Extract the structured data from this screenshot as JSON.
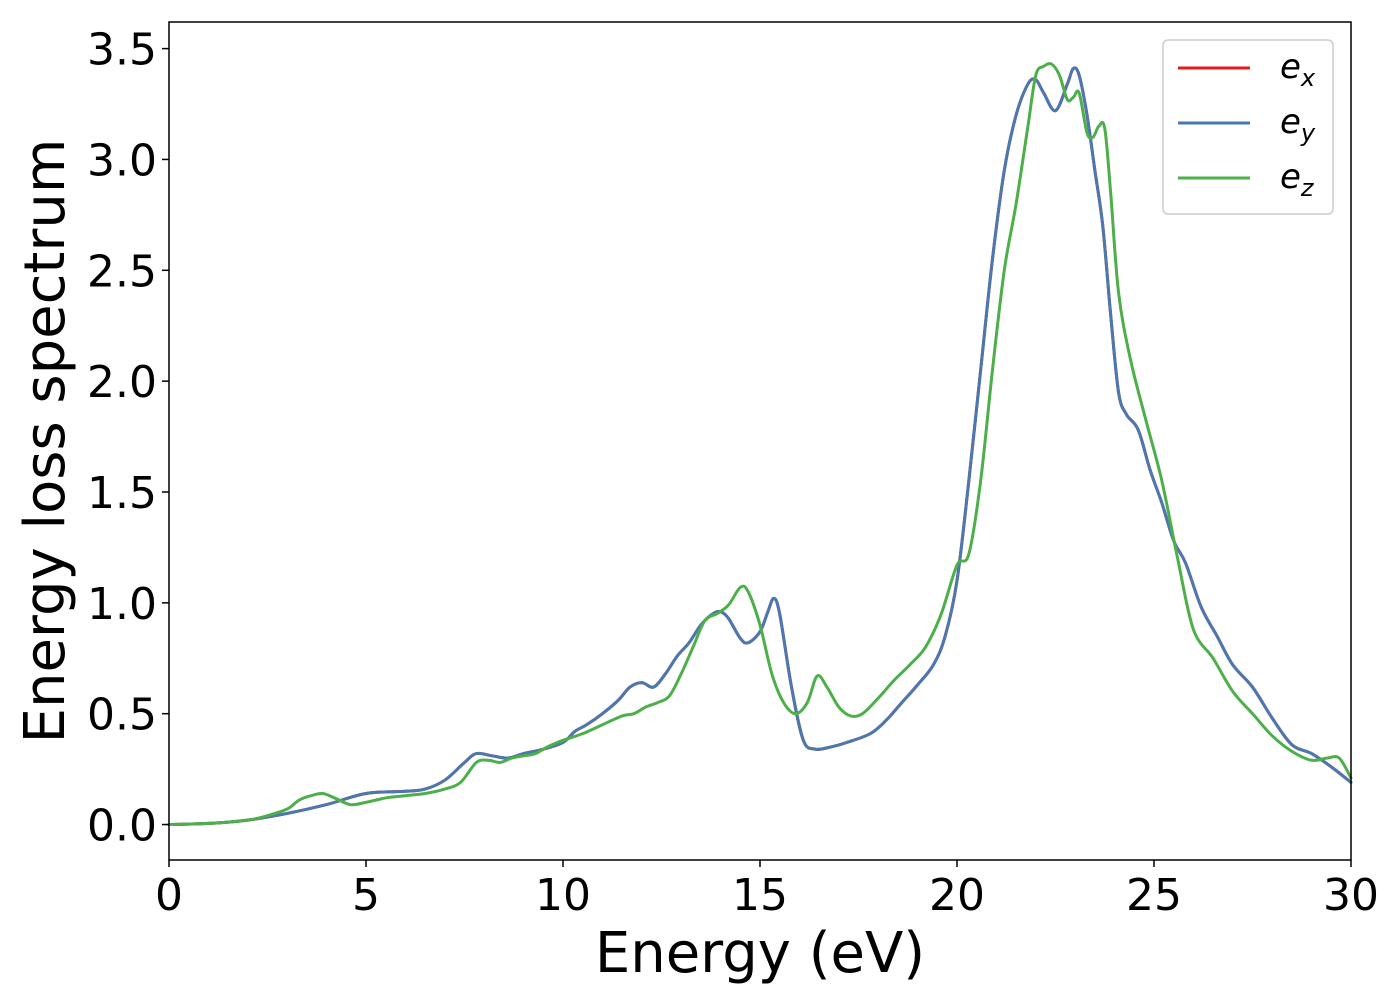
{
  "chart_data": {
    "type": "line",
    "title": "",
    "xlabel": "Energy (eV)",
    "ylabel": "Energy loss spectrum",
    "xlim": [
      0,
      30
    ],
    "ylim": [
      -0.16,
      3.62
    ],
    "x_ticks": [
      0,
      5,
      10,
      15,
      20,
      25,
      30
    ],
    "x_tick_labels": [
      "0",
      "5",
      "10",
      "15",
      "20",
      "25",
      "30"
    ],
    "y_ticks": [
      0.0,
      0.5,
      1.0,
      1.5,
      2.0,
      2.5,
      3.0,
      3.5
    ],
    "y_tick_labels": [
      "0.0",
      "0.5",
      "1.0",
      "1.5",
      "2.0",
      "2.5",
      "3.0",
      "3.5"
    ],
    "grid": false,
    "legend_position": "top-right",
    "series": [
      {
        "name": "e_x",
        "legend_base": "e",
        "legend_sub": "x",
        "color": "#e41a1c",
        "x": [
          0,
          1,
          2,
          3,
          4,
          5,
          6,
          6.5,
          7,
          7.5,
          7.8,
          8.2,
          8.6,
          9,
          9.5,
          10,
          10.3,
          10.6,
          11,
          11.4,
          11.7,
          12,
          12.3,
          12.6,
          12.9,
          13.2,
          13.5,
          13.8,
          14.0,
          14.2,
          14.5,
          14.7,
          15.0,
          15.2,
          15.35,
          15.5,
          15.8,
          16.1,
          16.4,
          16.8,
          17.2,
          17.8,
          18.2,
          18.6,
          19.0,
          19.4,
          19.7,
          20.0,
          20.3,
          20.6,
          20.9,
          21.2,
          21.5,
          21.8,
          22.0,
          22.2,
          22.5,
          22.8,
          22.95,
          23.1,
          23.3,
          23.5,
          23.7,
          23.9,
          24.1,
          24.3,
          24.6,
          24.9,
          25.2,
          25.5,
          25.8,
          26.2,
          26.6,
          27.0,
          27.5,
          28.0,
          28.5,
          29.0,
          29.5,
          30.0
        ],
        "values": [
          0.0,
          0.005,
          0.02,
          0.05,
          0.09,
          0.14,
          0.15,
          0.16,
          0.2,
          0.28,
          0.32,
          0.31,
          0.3,
          0.32,
          0.34,
          0.37,
          0.42,
          0.45,
          0.5,
          0.56,
          0.62,
          0.64,
          0.62,
          0.68,
          0.76,
          0.82,
          0.9,
          0.95,
          0.96,
          0.93,
          0.84,
          0.82,
          0.87,
          0.96,
          1.02,
          0.95,
          0.62,
          0.38,
          0.34,
          0.35,
          0.37,
          0.41,
          0.47,
          0.55,
          0.63,
          0.72,
          0.85,
          1.1,
          1.55,
          2.05,
          2.55,
          2.95,
          3.2,
          3.34,
          3.36,
          3.3,
          3.22,
          3.34,
          3.41,
          3.38,
          3.2,
          2.95,
          2.7,
          2.3,
          1.95,
          1.85,
          1.78,
          1.6,
          1.45,
          1.28,
          1.18,
          0.98,
          0.85,
          0.72,
          0.62,
          0.48,
          0.36,
          0.32,
          0.26,
          0.19
        ]
      },
      {
        "name": "e_y",
        "legend_base": "e",
        "legend_sub": "y",
        "color": "#4a78b0",
        "x": [
          0,
          1,
          2,
          3,
          4,
          5,
          6,
          6.5,
          7,
          7.5,
          7.8,
          8.2,
          8.6,
          9,
          9.5,
          10,
          10.3,
          10.6,
          11,
          11.4,
          11.7,
          12,
          12.3,
          12.6,
          12.9,
          13.2,
          13.5,
          13.8,
          14.0,
          14.2,
          14.5,
          14.7,
          15.0,
          15.2,
          15.35,
          15.5,
          15.8,
          16.1,
          16.4,
          16.8,
          17.2,
          17.8,
          18.2,
          18.6,
          19.0,
          19.4,
          19.7,
          20.0,
          20.3,
          20.6,
          20.9,
          21.2,
          21.5,
          21.8,
          22.0,
          22.2,
          22.5,
          22.8,
          22.95,
          23.1,
          23.3,
          23.5,
          23.7,
          23.9,
          24.1,
          24.3,
          24.6,
          24.9,
          25.2,
          25.5,
          25.8,
          26.2,
          26.6,
          27.0,
          27.5,
          28.0,
          28.5,
          29.0,
          29.5,
          30.0
        ],
        "values": [
          0.0,
          0.005,
          0.02,
          0.05,
          0.09,
          0.14,
          0.15,
          0.16,
          0.2,
          0.28,
          0.32,
          0.31,
          0.3,
          0.32,
          0.34,
          0.37,
          0.42,
          0.45,
          0.5,
          0.56,
          0.62,
          0.64,
          0.62,
          0.68,
          0.76,
          0.82,
          0.9,
          0.95,
          0.96,
          0.93,
          0.84,
          0.82,
          0.87,
          0.96,
          1.02,
          0.95,
          0.62,
          0.38,
          0.34,
          0.35,
          0.37,
          0.41,
          0.47,
          0.55,
          0.63,
          0.72,
          0.85,
          1.1,
          1.55,
          2.05,
          2.55,
          2.95,
          3.2,
          3.34,
          3.36,
          3.3,
          3.22,
          3.34,
          3.41,
          3.38,
          3.2,
          2.95,
          2.7,
          2.3,
          1.95,
          1.85,
          1.78,
          1.6,
          1.45,
          1.28,
          1.18,
          0.98,
          0.85,
          0.72,
          0.62,
          0.48,
          0.36,
          0.32,
          0.26,
          0.19
        ]
      },
      {
        "name": "e_z",
        "legend_base": "e",
        "legend_sub": "z",
        "color": "#4daf4a",
        "x": [
          0,
          1,
          2,
          2.5,
          3,
          3.3,
          3.6,
          3.9,
          4.2,
          4.6,
          5,
          5.5,
          6,
          6.5,
          7,
          7.4,
          7.8,
          8.1,
          8.4,
          8.7,
          9,
          9.3,
          9.6,
          10,
          10.5,
          11,
          11.5,
          11.8,
          12.1,
          12.4,
          12.7,
          13.0,
          13.3,
          13.6,
          13.9,
          14.2,
          14.5,
          14.7,
          15.0,
          15.3,
          15.6,
          15.9,
          16.2,
          16.45,
          16.7,
          17.0,
          17.3,
          17.6,
          18.0,
          18.4,
          18.8,
          19.2,
          19.6,
          20.0,
          20.3,
          20.6,
          20.9,
          21.2,
          21.5,
          21.8,
          22.0,
          22.2,
          22.4,
          22.6,
          22.8,
          22.95,
          23.1,
          23.3,
          23.45,
          23.6,
          23.75,
          23.9,
          24.1,
          24.4,
          24.8,
          25.2,
          25.6,
          26.0,
          26.5,
          27.0,
          27.5,
          28.0,
          28.5,
          29.0,
          29.4,
          29.7,
          30.0
        ],
        "values": [
          0.0,
          0.005,
          0.02,
          0.04,
          0.07,
          0.11,
          0.13,
          0.14,
          0.12,
          0.09,
          0.1,
          0.12,
          0.13,
          0.14,
          0.16,
          0.19,
          0.28,
          0.29,
          0.28,
          0.3,
          0.31,
          0.32,
          0.35,
          0.38,
          0.41,
          0.45,
          0.49,
          0.5,
          0.53,
          0.55,
          0.58,
          0.68,
          0.8,
          0.92,
          0.95,
          0.99,
          1.07,
          1.05,
          0.9,
          0.68,
          0.55,
          0.5,
          0.55,
          0.67,
          0.62,
          0.53,
          0.49,
          0.5,
          0.57,
          0.65,
          0.72,
          0.8,
          0.95,
          1.17,
          1.22,
          1.55,
          2.05,
          2.5,
          2.8,
          3.15,
          3.38,
          3.42,
          3.43,
          3.38,
          3.27,
          3.28,
          3.3,
          3.12,
          3.1,
          3.15,
          3.14,
          2.85,
          2.4,
          2.1,
          1.82,
          1.55,
          1.2,
          0.88,
          0.75,
          0.6,
          0.5,
          0.4,
          0.33,
          0.29,
          0.3,
          0.3,
          0.21
        ]
      }
    ]
  }
}
